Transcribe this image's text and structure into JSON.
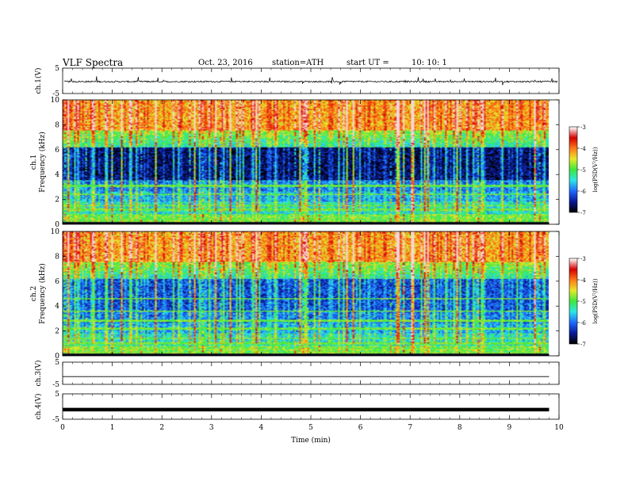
{
  "header": {
    "title": "VLF  Spectra",
    "date": "Oct. 23, 2016",
    "station": "station=ATH",
    "start_label": "start  UT  =",
    "start_value": "10: 10: 1"
  },
  "chart_data": [
    {
      "type": "line",
      "panel": "ch1-waveform",
      "ylabel": "ch.1(V)",
      "yticks": [
        "5",
        "-5"
      ],
      "ylim": [
        -5,
        5
      ],
      "xlim": [
        0,
        10
      ],
      "baseline_v": -0.3,
      "noise_v": 0.6
    },
    {
      "type": "heatmap",
      "panel": "ch1-spectrogram",
      "ylabel": "Frequency (kHz)",
      "channel_label": "ch.1",
      "yticks": [
        "0",
        "2",
        "4",
        "6",
        "8",
        "10"
      ],
      "ylim": [
        0,
        10
      ],
      "xlim": [
        0,
        9.8
      ],
      "colorbar": {
        "label": "log(PSD(V²/Hz))",
        "ticks": [
          "-3",
          "-4",
          "-5",
          "-6",
          "-7"
        ],
        "range": [
          -7,
          -3
        ],
        "colors": [
          "#000000",
          "#0a1a9a",
          "#1e6cff",
          "#2ee6e6",
          "#3ce83c",
          "#e8e82a",
          "#ff7a1a",
          "#d40000",
          "#ffffff"
        ]
      }
    },
    {
      "type": "heatmap",
      "panel": "ch2-spectrogram",
      "ylabel": "Frequency (kHz)",
      "channel_label": "ch.2",
      "yticks": [
        "0",
        "2",
        "4",
        "6",
        "8",
        "10"
      ],
      "ylim": [
        0,
        10
      ],
      "xlim": [
        0,
        9.8
      ],
      "colorbar": {
        "label": "log(PSD(V²/Hz))",
        "ticks": [
          "-3",
          "-4",
          "-5",
          "-6",
          "-7"
        ],
        "range": [
          -7,
          -3
        ]
      }
    },
    {
      "type": "line",
      "panel": "ch3-waveform",
      "ylabel": "ch.3(V)",
      "yticks": [
        "5",
        "-5"
      ],
      "ylim": [
        -5,
        5
      ],
      "xlim": [
        0,
        9.8
      ],
      "baseline_v": -1.5
    },
    {
      "type": "line",
      "panel": "ch4-waveform",
      "ylabel": "ch.4(V)",
      "yticks": [
        "5",
        "-5"
      ],
      "ylim": [
        -5,
        5
      ],
      "xlim": [
        0,
        9.8
      ],
      "baseline_v": -1.2
    }
  ],
  "xaxis": {
    "label": "Time  (min)",
    "ticks": [
      "0",
      "1",
      "2",
      "3",
      "4",
      "5",
      "6",
      "7",
      "8",
      "9",
      "10"
    ],
    "range": [
      0,
      10
    ]
  }
}
